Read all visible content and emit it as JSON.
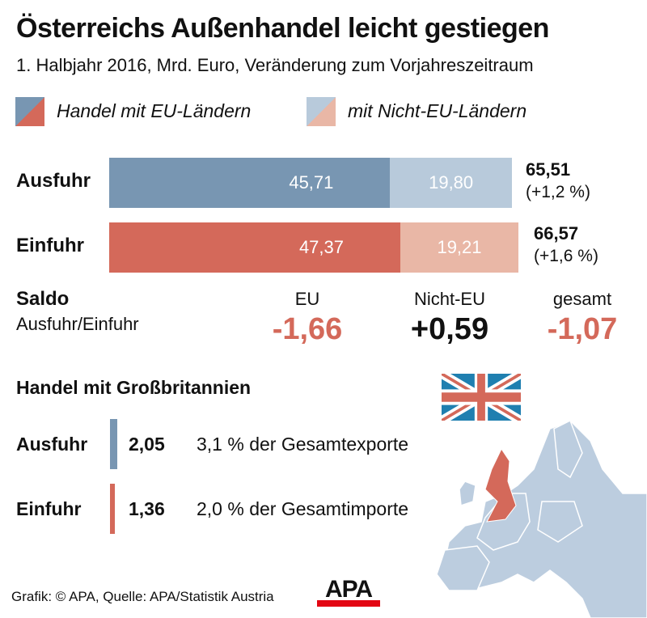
{
  "title": "Österreichs Außenhandel leicht gestiegen",
  "subtitle": "1. Halbjahr 2016, Mrd. Euro, Veränderung zum Vorjahreszeitraum",
  "legend": [
    {
      "label": "Handel mit EU-Ländern"
    },
    {
      "label": "mit Nicht-EU-Ländern"
    }
  ],
  "colors": {
    "export_eu": "#7896b2",
    "export_noneu": "#b8cadb",
    "import_eu": "#d4695a",
    "import_noneu": "#e9b7a6",
    "saldo_neg": "#d4695a"
  },
  "chart_data": {
    "type": "bar",
    "orientation": "horizontal",
    "stacked": true,
    "categories": [
      "Ausfuhr",
      "Einfuhr"
    ],
    "series": [
      {
        "name": "Handel mit EU-Ländern",
        "values": [
          45.71,
          47.37
        ],
        "labels": [
          "45,71",
          "47,37"
        ]
      },
      {
        "name": "mit Nicht-EU-Ländern",
        "values": [
          19.8,
          19.21
        ],
        "labels": [
          "19,80",
          "19,21"
        ]
      }
    ],
    "totals": [
      "65,51",
      "66,57"
    ],
    "changes": [
      "(+1,2 %)",
      "(+1,6 %)"
    ]
  },
  "saldo": {
    "label": "Saldo",
    "sublabel": "Ausfuhr/Einfuhr",
    "cols": [
      {
        "head": "EU",
        "value": "-1,66"
      },
      {
        "head": "Nicht-EU",
        "value": "+0,59"
      },
      {
        "head": "gesamt",
        "value": "-1,07"
      }
    ]
  },
  "uk": {
    "title": "Handel mit Großbritannien",
    "rows": [
      {
        "label": "Ausfuhr",
        "value": "2,05",
        "text": "3,1 % der Gesamtexporte"
      },
      {
        "label": "Einfuhr",
        "value": "1,36",
        "text": "2,0 % der Gesamtimporte"
      }
    ]
  },
  "footer": {
    "source": "Grafik: © APA, Quelle: APA/Statistik Austria",
    "logo": "APA"
  }
}
